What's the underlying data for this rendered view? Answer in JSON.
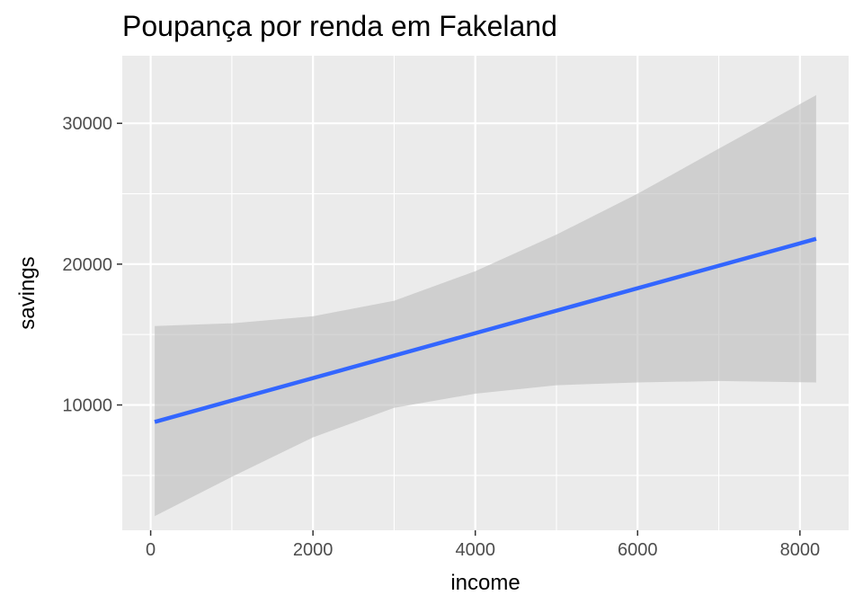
{
  "chart_data": {
    "type": "line",
    "title": "Poupança por renda em Fakeland",
    "xlabel": "income",
    "ylabel": "savings",
    "xlim": [
      -350,
      8600
    ],
    "ylim": [
      1100,
      34800
    ],
    "x_ticks": [
      0,
      2000,
      4000,
      6000,
      8000
    ],
    "y_ticks": [
      10000,
      20000,
      30000
    ],
    "grid": true,
    "series": [
      {
        "type": "line",
        "x": [
          50,
          8200
        ],
        "y": [
          8800,
          21800
        ]
      }
    ],
    "confidence_band": {
      "x": [
        50,
        1000,
        2000,
        3000,
        4000,
        5000,
        6000,
        7000,
        8200
      ],
      "lower": [
        2100,
        4900,
        7700,
        9800,
        10800,
        11400,
        11600,
        11700,
        11600
      ],
      "upper": [
        15600,
        15800,
        16300,
        17400,
        19500,
        22100,
        25000,
        28200,
        32000
      ]
    },
    "colors": {
      "panel_background": "#ebebeb",
      "grid_line": "#ffffff",
      "line": "#3366ff",
      "band": "#bdbdbd"
    }
  }
}
